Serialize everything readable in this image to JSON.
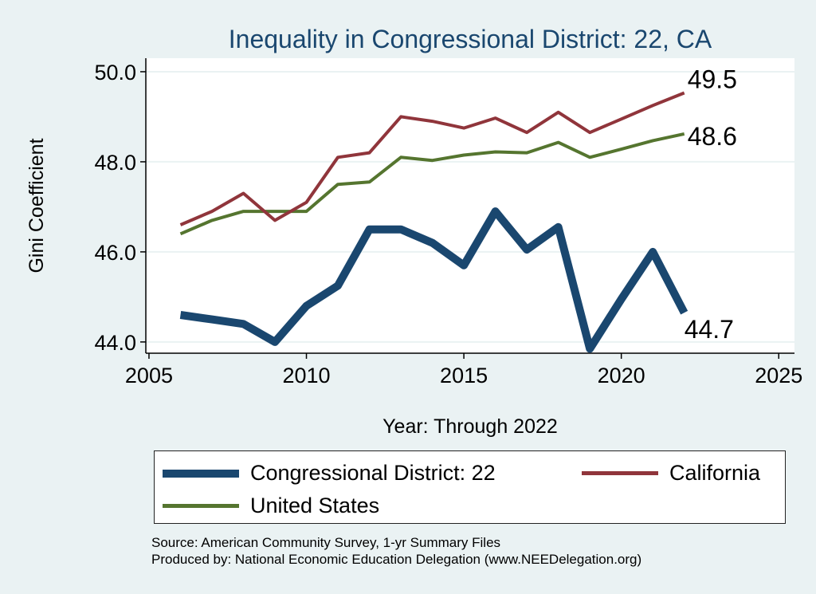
{
  "chart_data": {
    "type": "line",
    "title": "Inequality in Congressional District:  22, CA",
    "xlabel": "Year: Through 2022",
    "ylabel": "Gini Coefficient",
    "xlim": [
      2004.9,
      2025.5
    ],
    "ylim": [
      43.75,
      50.3
    ],
    "x_ticks": [
      2005,
      2010,
      2015,
      2020,
      2025
    ],
    "y_ticks": [
      44.0,
      46.0,
      48.0,
      50.0
    ],
    "y_tick_labels": [
      "44.0",
      "46.0",
      "48.0",
      "50.0"
    ],
    "grid": true,
    "legend_position": "bottom",
    "x": [
      2006,
      2007,
      2008,
      2009,
      2010,
      2011,
      2012,
      2013,
      2014,
      2015,
      2016,
      2017,
      2018,
      2019,
      2020,
      2021,
      2022
    ],
    "series": [
      {
        "name": "Congressional District:  22",
        "color": "#1a476f",
        "values": [
          44.6,
          44.5,
          44.4,
          44.0,
          44.8,
          45.25,
          46.5,
          46.5,
          46.2,
          45.7,
          46.9,
          46.05,
          46.55,
          43.85,
          44.95,
          46.0,
          44.65
        ],
        "end_label": "44.7"
      },
      {
        "name": "California",
        "color": "#90353b",
        "values": [
          46.6,
          46.9,
          47.3,
          46.7,
          47.1,
          48.1,
          48.2,
          49.0,
          48.9,
          48.75,
          48.97,
          48.65,
          49.1,
          48.65,
          48.95,
          49.25,
          49.53
        ],
        "end_label": "49.5"
      },
      {
        "name": "United States",
        "color": "#55752f",
        "values": [
          46.4,
          46.7,
          46.9,
          46.9,
          46.9,
          47.5,
          47.55,
          48.1,
          48.03,
          48.15,
          48.22,
          48.2,
          48.43,
          48.1,
          48.28,
          48.47,
          48.62
        ],
        "end_label": "48.6"
      }
    ]
  },
  "legend": {
    "items": [
      {
        "label": "Congressional District:  22",
        "color": "#1a476f"
      },
      {
        "label": "California",
        "color": "#90353b"
      },
      {
        "label": "United States",
        "color": "#55752f"
      }
    ]
  },
  "source": {
    "line1": "Source: American Community Survey, 1-yr Summary Files",
    "line2": "Produced by: National Economic Education Delegation (www.NEEDelegation.org)"
  }
}
